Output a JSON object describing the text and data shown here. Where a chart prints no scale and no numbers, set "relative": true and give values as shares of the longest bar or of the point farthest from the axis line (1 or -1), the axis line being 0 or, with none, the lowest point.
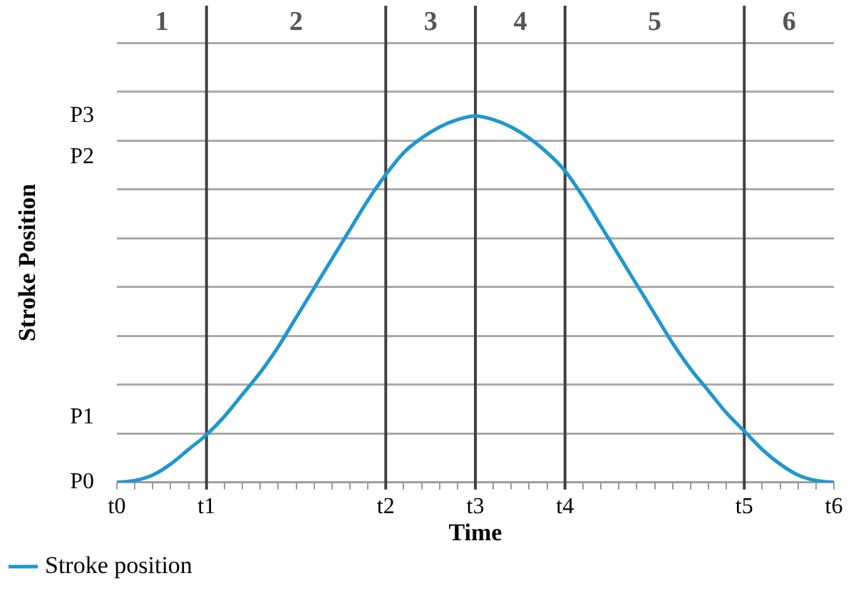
{
  "chart_data": {
    "type": "line",
    "xlabel": "Time",
    "ylabel": "Stroke Position",
    "relative": true,
    "categories": [
      "t0",
      null,
      null,
      null,
      null,
      "t1",
      null,
      null,
      null,
      null,
      null,
      null,
      null,
      null,
      null,
      "t2",
      null,
      null,
      null,
      null,
      "t3",
      null,
      null,
      null,
      null,
      "t4",
      null,
      null,
      null,
      null,
      null,
      null,
      null,
      null,
      null,
      "t5",
      null,
      null,
      null,
      null,
      "t6"
    ],
    "series": [
      {
        "name": "Stroke position",
        "color": "#1f97d0",
        "values": [
          0,
          0.005,
          0.02,
          0.05,
          0.09,
          0.13,
          0.18,
          0.24,
          0.3,
          0.37,
          0.45,
          0.53,
          0.61,
          0.69,
          0.77,
          0.84,
          0.9,
          0.94,
          0.97,
          0.99,
          1,
          0.99,
          0.97,
          0.94,
          0.9,
          0.85,
          0.78,
          0.7,
          0.62,
          0.54,
          0.46,
          0.38,
          0.31,
          0.25,
          0.19,
          0.14,
          0.09,
          0.05,
          0.02,
          0.005,
          0
        ]
      }
    ],
    "ref_lines": [
      {
        "axis": "x",
        "value": "t1",
        "color": "#404040"
      },
      {
        "axis": "x",
        "value": "t2",
        "color": "#404040"
      },
      {
        "axis": "x",
        "value": "t3",
        "color": "#404040"
      },
      {
        "axis": "x",
        "value": "t4",
        "color": "#404040"
      },
      {
        "axis": "x",
        "value": "t5",
        "color": "#404040"
      }
    ],
    "annotations": [
      "1",
      "2",
      "3",
      "4",
      "5",
      "6",
      "P0",
      "P1",
      "P2",
      "P3"
    ],
    "grid": "y",
    "legend": "bottom left",
    "marker": "none",
    "line_style": "solid"
  }
}
